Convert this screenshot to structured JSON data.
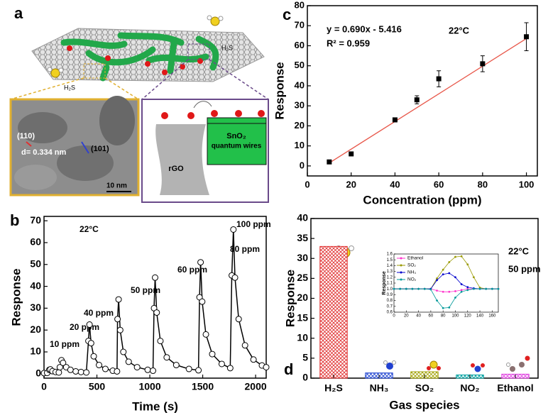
{
  "diagram": {
    "panel_label": "a",
    "h2s_left": "H₂S",
    "h2s_right": "H₂S",
    "tem": {
      "plane1": "(110)",
      "d_spacing": "d= 0.334 nm",
      "plane2": "(101)",
      "scale_bar": "10 nm"
    },
    "schematic": {
      "rgo": "rGO",
      "sno2": "SnO₂",
      "sno2_sub": "quantum wires"
    }
  },
  "chart_data": [
    {
      "type": "scatter",
      "panel_label": "c",
      "x_label": "Concentration (ppm)",
      "y_label": "Response",
      "annotations": [
        "y = 0.690x - 5.416",
        "R² = 0.959",
        "22°C"
      ],
      "x": [
        10,
        20,
        40,
        50,
        60,
        80,
        100
      ],
      "values": [
        2,
        6,
        23,
        33,
        43.5,
        51,
        64.5
      ],
      "errors": [
        0.5,
        0.5,
        1,
        2,
        4,
        4,
        7
      ],
      "color": "#000000",
      "fit": {
        "slope": 0.69,
        "intercept": -5.416,
        "color": "#e8574a"
      },
      "xlim": [
        0,
        105
      ],
      "ylim": [
        -5,
        80
      ],
      "xticks": [
        0,
        20,
        40,
        60,
        80,
        100
      ],
      "yticks": [
        0,
        10,
        20,
        30,
        40,
        50,
        60,
        70,
        80
      ]
    },
    {
      "type": "line",
      "panel_label": "b",
      "x_label": "Time (s)",
      "y_label": "Response",
      "annotations": [
        "22°C",
        "10 ppm",
        "20 ppm",
        "40 ppm",
        "50 ppm",
        "60 ppm",
        "80 ppm",
        "100 ppm"
      ],
      "x": [
        0,
        30,
        50,
        60,
        80,
        110,
        140,
        150,
        165,
        180,
        210,
        250,
        300,
        350,
        400,
        420,
        430,
        445,
        470,
        520,
        580,
        650,
        690,
        695,
        705,
        720,
        750,
        800,
        880,
        980,
        1030,
        1040,
        1050,
        1065,
        1100,
        1160,
        1250,
        1370,
        1460,
        1470,
        1480,
        1495,
        1530,
        1590,
        1680,
        1760,
        1775,
        1790,
        1805,
        1840,
        1900,
        1980,
        2060,
        2100
      ],
      "values": [
        0.3,
        0.4,
        1.8,
        2,
        1.2,
        0.8,
        0.6,
        3,
        6.2,
        5,
        3,
        1.8,
        1.1,
        0.8,
        0.6,
        15,
        22.5,
        14,
        8,
        4,
        2.2,
        1.4,
        1.1,
        25,
        34,
        20,
        10,
        5.5,
        3,
        1.8,
        1.4,
        30,
        44,
        28,
        15,
        7.5,
        4,
        2.2,
        1.6,
        35,
        51,
        33,
        18,
        9,
        4.5,
        2.6,
        45,
        66,
        44,
        25,
        13,
        6.5,
        3.8,
        3
      ],
      "color": "#000000",
      "xlim": [
        0,
        2100
      ],
      "ylim": [
        -2,
        72
      ],
      "xticks": [
        0,
        500,
        1000,
        1500,
        2000
      ],
      "yticks": [
        0,
        10,
        20,
        30,
        40,
        50,
        60,
        70
      ]
    },
    {
      "type": "bar",
      "panel_label": "d",
      "x_label": "Gas species",
      "y_label": "Response",
      "annotations": [
        "22°C",
        "50 ppm"
      ],
      "categories": [
        "H₂S",
        "NH₃",
        "SO₂",
        "NO₂",
        "Ethanol"
      ],
      "values": [
        33,
        1.3,
        1.6,
        0.8,
        1
      ],
      "colors": [
        "#e03030",
        "#1a3fd0",
        "#a0a000",
        "#00a0a0",
        "#e040e0"
      ],
      "ylim": [
        0,
        40
      ],
      "yticks": [
        0,
        5,
        10,
        15,
        20,
        25,
        30,
        35,
        40
      ]
    },
    {
      "type": "line",
      "y_label": "Response",
      "legend": "top-left",
      "x": [
        0,
        10,
        20,
        30,
        40,
        50,
        60,
        70,
        80,
        90,
        100,
        110,
        120,
        130,
        140,
        150,
        160,
        170
      ],
      "series": [
        {
          "name": "Ethanol",
          "color": "#ff33cc",
          "values": [
            1,
            1,
            1,
            1,
            1,
            1,
            1,
            0.97,
            0.95,
            0.95,
            0.96,
            0.98,
            1,
            1,
            1,
            1,
            1,
            1
          ]
        },
        {
          "name": "SO₂",
          "color": "#999900",
          "values": [
            1,
            1,
            1,
            1,
            1,
            1,
            1,
            1.18,
            1.33,
            1.46,
            1.55,
            1.56,
            1.42,
            1.2,
            1.02,
            1,
            1,
            1
          ]
        },
        {
          "name": "NH₃",
          "color": "#0000cc",
          "values": [
            1,
            1,
            1,
            1,
            1,
            1,
            1,
            1.15,
            1.25,
            1.27,
            1.2,
            1.08,
            1.03,
            1.01,
            1,
            1,
            1,
            1
          ]
        },
        {
          "name": "NO₂",
          "color": "#009999",
          "values": [
            1,
            1,
            1,
            1,
            1,
            1,
            0.99,
            0.8,
            0.67,
            0.68,
            0.85,
            0.95,
            0.98,
            1,
            1,
            1,
            1,
            1
          ]
        }
      ],
      "xlim": [
        0,
        170
      ],
      "ylim": [
        0.6,
        1.6
      ],
      "xticks": [
        0,
        20,
        40,
        60,
        80,
        100,
        120,
        140,
        160
      ],
      "yticks": [
        0.6,
        0.7,
        0.8,
        0.9,
        {
          "value": 1,
          "label": "1.0"
        },
        1.1,
        1.2,
        1.3,
        1.4,
        1.5,
        1.6
      ]
    }
  ]
}
